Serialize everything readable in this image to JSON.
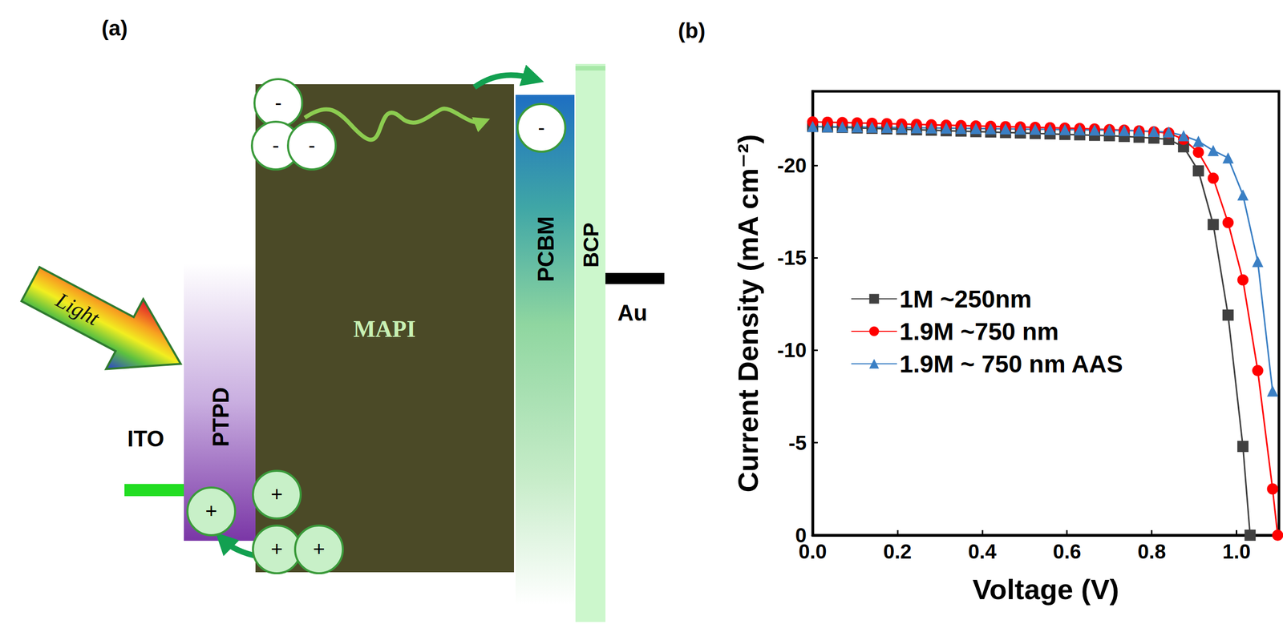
{
  "panel_a": {
    "label": "(a)",
    "layers": {
      "ito": "ITO",
      "ptpd": "PTPD",
      "mapi": "MAPI",
      "pcbm": "PCBM",
      "bcp": "BCP",
      "au": "Au"
    },
    "light": "Light",
    "electron": "-",
    "hole": "+"
  },
  "chart_data": {
    "type": "line",
    "panel_label": "(b)",
    "x_label": "Voltage (V)",
    "y_label": "Current Density (mA cm⁻²)",
    "xlim": [
      0,
      1.1
    ],
    "xticks": [
      {
        "value": 0,
        "label": "0.0"
      },
      0.2,
      0.4,
      0.6,
      0.8,
      {
        "value": 1,
        "label": "1.0"
      }
    ],
    "ylim": [
      0,
      -24
    ],
    "yticks": [
      0,
      -5,
      -10,
      -15,
      -20
    ],
    "grid": false,
    "legend": "left",
    "series": [
      {
        "name": "1M ~250nm",
        "color": "#404040",
        "marker": "square",
        "x": [
          0,
          0.035,
          0.07,
          0.105,
          0.14,
          0.175,
          0.21,
          0.245,
          0.28,
          0.315,
          0.35,
          0.385,
          0.42,
          0.455,
          0.49,
          0.525,
          0.56,
          0.595,
          0.63,
          0.665,
          0.7,
          0.735,
          0.77,
          0.805,
          0.84,
          0.875,
          0.91,
          0.945,
          0.98,
          1.015,
          1.032
        ],
        "values": [
          -22.1,
          -22.07,
          -22.05,
          -22.02,
          -22.0,
          -21.97,
          -21.95,
          -21.92,
          -21.9,
          -21.87,
          -21.85,
          -21.82,
          -21.8,
          -21.77,
          -21.75,
          -21.72,
          -21.7,
          -21.67,
          -21.65,
          -21.62,
          -21.6,
          -21.56,
          -21.52,
          -21.47,
          -21.4,
          -21.0,
          -19.7,
          -16.8,
          -11.9,
          -4.8,
          0
        ]
      },
      {
        "name": "1.9M ~750 nm",
        "color": "#ff0000",
        "marker": "circle",
        "x": [
          0,
          0.035,
          0.07,
          0.105,
          0.14,
          0.175,
          0.21,
          0.245,
          0.28,
          0.315,
          0.35,
          0.385,
          0.42,
          0.455,
          0.49,
          0.525,
          0.56,
          0.595,
          0.63,
          0.665,
          0.7,
          0.735,
          0.77,
          0.805,
          0.84,
          0.875,
          0.91,
          0.945,
          0.98,
          1.015,
          1.05,
          1.085,
          1.097
        ],
        "values": [
          -22.35,
          -22.33,
          -22.31,
          -22.29,
          -22.27,
          -22.25,
          -22.23,
          -22.21,
          -22.19,
          -22.17,
          -22.15,
          -22.13,
          -22.11,
          -22.09,
          -22.07,
          -22.05,
          -22.03,
          -22.01,
          -21.99,
          -21.96,
          -21.93,
          -21.9,
          -21.86,
          -21.81,
          -21.75,
          -21.4,
          -20.7,
          -19.3,
          -16.9,
          -13.8,
          -8.9,
          -2.5,
          0
        ]
      },
      {
        "name": "1.9M ~ 750 nm AAS",
        "color": "#3a7fc4",
        "marker": "triangle",
        "x": [
          0,
          0.035,
          0.07,
          0.105,
          0.14,
          0.175,
          0.21,
          0.245,
          0.28,
          0.315,
          0.35,
          0.385,
          0.42,
          0.455,
          0.49,
          0.525,
          0.56,
          0.595,
          0.63,
          0.665,
          0.7,
          0.735,
          0.77,
          0.805,
          0.84,
          0.875,
          0.91,
          0.945,
          0.98,
          1.015,
          1.05,
          1.085
        ],
        "values": [
          -22.1,
          -22.09,
          -22.08,
          -22.07,
          -22.06,
          -22.05,
          -22.04,
          -22.03,
          -22.02,
          -22.01,
          -22.0,
          -21.99,
          -21.98,
          -21.97,
          -21.96,
          -21.95,
          -21.94,
          -21.93,
          -21.92,
          -21.91,
          -21.9,
          -21.88,
          -21.86,
          -21.83,
          -21.8,
          -21.6,
          -21.3,
          -20.8,
          -20.4,
          -18.4,
          -14.8,
          -7.8
        ]
      }
    ]
  }
}
